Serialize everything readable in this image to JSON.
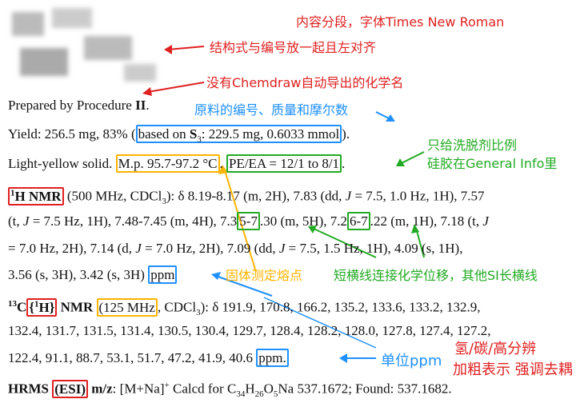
{
  "annotations": {
    "a1": "内容分段，字体Times New Roman",
    "a2": "结构式与编号放一起且左对齐",
    "a3": "没有Chemdraw自动导出的化学名",
    "a4": "原料的编号、质量和摩尔数",
    "a5": "只给洗脱剂比例",
    "a6": "硅胶在General Info里",
    "a7": "固体测定熔点",
    "a8": "短横线连接化学位移，其他SI长横线",
    "a9": "单位ppm",
    "a10": "氢/碳/高分辨",
    "a11": "加粗表示 强调去耦"
  },
  "colors": {
    "red": "#e02020",
    "blue": "#1e90ff",
    "orange": "#ffb400",
    "green": "#22aa22"
  },
  "text": {
    "l1a": "Prepared by Procedure ",
    "l1b": "II",
    ".": ".",
    "l2a": "Yield: 256.5 mg, 83% (",
    "l2b": "based on ",
    "l2c": "S",
    "l2d": "3",
    "l2e": ": 229.5 mg, 0.6033 mmol",
    "l2f": ").",
    "l3a": "Light-yellow solid. ",
    "l3b": "M.p. 95.7-97.2 °C",
    ". ": ". ",
    "l3c": "PE/EA = 12/1 to 8/1",
    "l4a": "1",
    "l4b": "H NMR",
    "l4c": " (500 MHz, CDCl",
    "l4d": "3",
    "l4e": "): δ 8.19-8.17 (m, 2H), 7.83 (dd, ",
    "J": "J",
    "l4f": " = 7.5, 1.0 Hz, 1H), 7.57",
    "l5a": "(t, ",
    "l5b": " = 7.5 Hz, 1H), 7.48-7.45 (m, 4H), 7.3",
    "l5c": "5-7",
    "l5d": ".30 (m, 5H), 7.2",
    "l5e": "6-7",
    "l5f": ".22 (m, 1H), 7.18 (t, ",
    "l6a": "= 7.0 Hz, 2H), 7.14 (d, ",
    "l6b": " = 7.0 Hz, 2H), 7.09 (dd, ",
    "l6c": " = 7.5, 1.5 Hz, 1H), 4.09 (s, 1H),",
    "l7a": "3.56 (s, 3H), 3.42 (s, 3H) ",
    "l7b": "ppm",
    "l8a": "13",
    "l8b": "C",
    "l8c": "{",
    "l8d": "1",
    "l8e": "H}",
    "l8f": " NMR ",
    "l8g": "(125 MHz",
    ", CDCl": ", CDCl",
    "l8h": "): δ 191.9, 170.8, 166.2, 135.2, 133.6, 133.2, 132.9,",
    "l9": "132.4, 131.7, 131.5, 131.4, 130.5, 130.4, 129.7, 128.4, 128.2, 128.0, 127.8, 127.4, 127.2,",
    "l10a": "122.4, 91.1, 88.7, 53.1, 51.7, 47.2, 41.9, 40.6 ",
    "l10b": "ppm.",
    "l11a": "HRMS ",
    "l11b": "(ESI)",
    "l11c": " m/z",
    ":": ": ",
    "l11d": "[M+Na]",
    "l11e": "+",
    "l11f": " Calcd for C",
    "s34": "34",
    "H": "H",
    "s26": "26",
    "O": "O",
    "s5": "5",
    "l11g": "Na 537.1672; Found: 537.1682."
  }
}
